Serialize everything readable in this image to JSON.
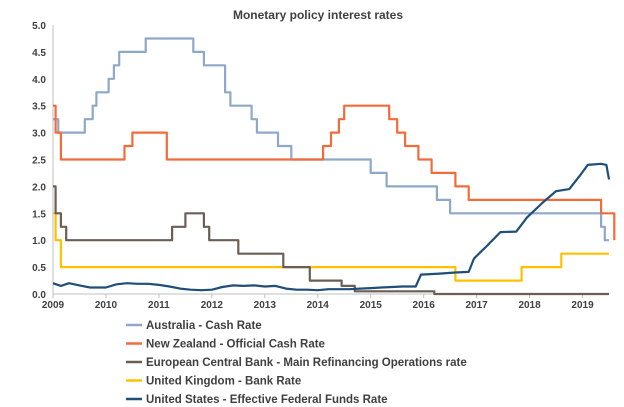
{
  "chart_data": {
    "type": "line",
    "title": "Monetary policy interest rates",
    "xlabel": "",
    "ylabel": "",
    "xlim": [
      2009.0,
      2019.5
    ],
    "ylim": [
      0,
      5.0
    ],
    "x_ticks": [
      "2009",
      "2010",
      "2011",
      "2012",
      "2013",
      "2014",
      "2015",
      "2016",
      "2017",
      "2018",
      "2019"
    ],
    "y_ticks": [
      "0.0",
      "0.5",
      "1.0",
      "1.5",
      "2.0",
      "2.5",
      "3.0",
      "3.5",
      "4.0",
      "4.5",
      "5.0"
    ],
    "grid": false,
    "legend_position": "bottom",
    "series": [
      {
        "name": "Australia - Cash Rate",
        "color": "#8EA9C8",
        "points": [
          [
            2009.0,
            3.25
          ],
          [
            2009.1,
            3.25
          ],
          [
            2009.1,
            3.0
          ],
          [
            2009.6,
            3.0
          ],
          [
            2009.6,
            3.25
          ],
          [
            2009.75,
            3.25
          ],
          [
            2009.75,
            3.5
          ],
          [
            2009.82,
            3.5
          ],
          [
            2009.82,
            3.75
          ],
          [
            2010.05,
            3.75
          ],
          [
            2010.05,
            4.0
          ],
          [
            2010.15,
            4.0
          ],
          [
            2010.15,
            4.25
          ],
          [
            2010.25,
            4.25
          ],
          [
            2010.25,
            4.5
          ],
          [
            2010.75,
            4.5
          ],
          [
            2010.75,
            4.75
          ],
          [
            2011.65,
            4.75
          ],
          [
            2011.65,
            4.5
          ],
          [
            2011.85,
            4.5
          ],
          [
            2011.85,
            4.25
          ],
          [
            2012.25,
            4.25
          ],
          [
            2012.25,
            3.75
          ],
          [
            2012.35,
            3.75
          ],
          [
            2012.35,
            3.5
          ],
          [
            2012.75,
            3.5
          ],
          [
            2012.75,
            3.25
          ],
          [
            2012.85,
            3.25
          ],
          [
            2012.85,
            3.0
          ],
          [
            2013.25,
            3.0
          ],
          [
            2013.25,
            2.75
          ],
          [
            2013.5,
            2.75
          ],
          [
            2013.5,
            2.5
          ],
          [
            2015.0,
            2.5
          ],
          [
            2015.0,
            2.25
          ],
          [
            2015.3,
            2.25
          ],
          [
            2015.3,
            2.0
          ],
          [
            2016.25,
            2.0
          ],
          [
            2016.25,
            1.75
          ],
          [
            2016.5,
            1.75
          ],
          [
            2016.5,
            1.5
          ],
          [
            2019.35,
            1.5
          ],
          [
            2019.35,
            1.25
          ],
          [
            2019.42,
            1.25
          ],
          [
            2019.42,
            1.0
          ],
          [
            2019.5,
            1.0
          ]
        ]
      },
      {
        "name": "New Zealand - Official Cash Rate",
        "color": "#F26B3A",
        "points": [
          [
            2009.0,
            3.5
          ],
          [
            2009.05,
            3.5
          ],
          [
            2009.05,
            3.0
          ],
          [
            2009.15,
            3.0
          ],
          [
            2009.15,
            2.5
          ],
          [
            2010.35,
            2.5
          ],
          [
            2010.35,
            2.75
          ],
          [
            2010.5,
            2.75
          ],
          [
            2010.5,
            3.0
          ],
          [
            2011.15,
            3.0
          ],
          [
            2011.15,
            2.5
          ],
          [
            2014.1,
            2.5
          ],
          [
            2014.1,
            2.75
          ],
          [
            2014.25,
            2.75
          ],
          [
            2014.25,
            3.0
          ],
          [
            2014.4,
            3.0
          ],
          [
            2014.4,
            3.25
          ],
          [
            2014.5,
            3.25
          ],
          [
            2014.5,
            3.5
          ],
          [
            2015.35,
            3.5
          ],
          [
            2015.35,
            3.25
          ],
          [
            2015.5,
            3.25
          ],
          [
            2015.5,
            3.0
          ],
          [
            2015.65,
            3.0
          ],
          [
            2015.65,
            2.75
          ],
          [
            2015.9,
            2.75
          ],
          [
            2015.9,
            2.5
          ],
          [
            2016.15,
            2.5
          ],
          [
            2016.15,
            2.25
          ],
          [
            2016.6,
            2.25
          ],
          [
            2016.6,
            2.0
          ],
          [
            2016.85,
            2.0
          ],
          [
            2016.85,
            1.75
          ],
          [
            2019.35,
            1.75
          ],
          [
            2019.35,
            1.5
          ],
          [
            2019.6,
            1.5
          ],
          [
            2019.6,
            1.0
          ]
        ]
      },
      {
        "name": "European Central Bank - Main Refinancing Operations rate",
        "color": "#6B5E57",
        "points": [
          [
            2009.0,
            2.0
          ],
          [
            2009.05,
            2.0
          ],
          [
            2009.05,
            1.5
          ],
          [
            2009.15,
            1.5
          ],
          [
            2009.15,
            1.25
          ],
          [
            2009.25,
            1.25
          ],
          [
            2009.25,
            1.0
          ],
          [
            2011.25,
            1.0
          ],
          [
            2011.25,
            1.25
          ],
          [
            2011.5,
            1.25
          ],
          [
            2011.5,
            1.5
          ],
          [
            2011.85,
            1.5
          ],
          [
            2011.85,
            1.25
          ],
          [
            2011.95,
            1.25
          ],
          [
            2011.95,
            1.0
          ],
          [
            2012.5,
            1.0
          ],
          [
            2012.5,
            0.75
          ],
          [
            2013.35,
            0.75
          ],
          [
            2013.35,
            0.5
          ],
          [
            2013.85,
            0.5
          ],
          [
            2013.85,
            0.25
          ],
          [
            2014.45,
            0.25
          ],
          [
            2014.45,
            0.15
          ],
          [
            2014.7,
            0.15
          ],
          [
            2014.7,
            0.05
          ],
          [
            2016.2,
            0.05
          ],
          [
            2016.2,
            0.0
          ],
          [
            2019.5,
            0.0
          ]
        ]
      },
      {
        "name": "United Kingdom - Bank Rate",
        "color": "#FFC000",
        "points": [
          [
            2009.0,
            1.5
          ],
          [
            2009.05,
            1.5
          ],
          [
            2009.05,
            1.0
          ],
          [
            2009.15,
            1.0
          ],
          [
            2009.15,
            0.5
          ],
          [
            2016.6,
            0.5
          ],
          [
            2016.6,
            0.25
          ],
          [
            2017.85,
            0.25
          ],
          [
            2017.85,
            0.5
          ],
          [
            2018.6,
            0.5
          ],
          [
            2018.6,
            0.75
          ],
          [
            2019.5,
            0.75
          ]
        ]
      },
      {
        "name": "United States - Effective Federal Funds Rate",
        "color": "#1F4E79",
        "points": [
          [
            2009.0,
            0.2
          ],
          [
            2009.15,
            0.15
          ],
          [
            2009.3,
            0.2
          ],
          [
            2009.5,
            0.16
          ],
          [
            2009.7,
            0.12
          ],
          [
            2009.9,
            0.12
          ],
          [
            2010.0,
            0.12
          ],
          [
            2010.2,
            0.18
          ],
          [
            2010.4,
            0.2
          ],
          [
            2010.6,
            0.19
          ],
          [
            2010.8,
            0.19
          ],
          [
            2011.0,
            0.17
          ],
          [
            2011.2,
            0.14
          ],
          [
            2011.4,
            0.1
          ],
          [
            2011.6,
            0.08
          ],
          [
            2011.8,
            0.07
          ],
          [
            2012.0,
            0.08
          ],
          [
            2012.2,
            0.13
          ],
          [
            2012.4,
            0.16
          ],
          [
            2012.6,
            0.15
          ],
          [
            2012.8,
            0.16
          ],
          [
            2013.0,
            0.14
          ],
          [
            2013.2,
            0.15
          ],
          [
            2013.4,
            0.1
          ],
          [
            2013.6,
            0.08
          ],
          [
            2013.8,
            0.08
          ],
          [
            2014.0,
            0.07
          ],
          [
            2014.2,
            0.09
          ],
          [
            2014.4,
            0.09
          ],
          [
            2014.6,
            0.09
          ],
          [
            2014.8,
            0.1
          ],
          [
            2015.0,
            0.11
          ],
          [
            2015.2,
            0.12
          ],
          [
            2015.4,
            0.13
          ],
          [
            2015.6,
            0.14
          ],
          [
            2015.85,
            0.14
          ],
          [
            2015.95,
            0.36
          ],
          [
            2016.3,
            0.38
          ],
          [
            2016.6,
            0.4
          ],
          [
            2016.85,
            0.41
          ],
          [
            2016.95,
            0.66
          ],
          [
            2017.2,
            0.9
          ],
          [
            2017.45,
            1.15
          ],
          [
            2017.75,
            1.16
          ],
          [
            2017.95,
            1.42
          ],
          [
            2018.25,
            1.7
          ],
          [
            2018.5,
            1.91
          ],
          [
            2018.75,
            1.95
          ],
          [
            2018.95,
            2.2
          ],
          [
            2019.1,
            2.4
          ],
          [
            2019.35,
            2.42
          ],
          [
            2019.45,
            2.4
          ],
          [
            2019.5,
            2.13
          ]
        ]
      }
    ]
  }
}
